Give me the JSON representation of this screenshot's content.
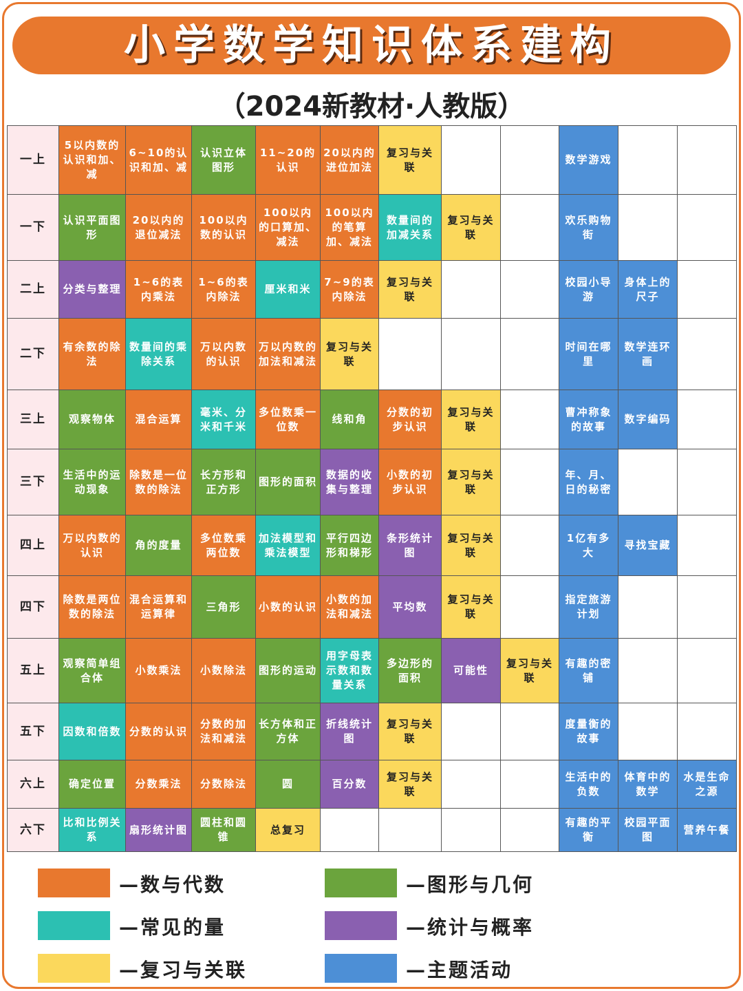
{
  "header": {
    "title": "小学数学知识体系建构",
    "subtitle": "（2024新教材·人教版）"
  },
  "table": {
    "rows": [
      {
        "label": "一上",
        "cells": [
          {
            "text": "5以内数的认识和加、减",
            "color": "#e8782e"
          },
          {
            "text": "6~10的认识和加、减",
            "color": "#e8782e"
          },
          {
            "text": "认识立体图形",
            "color": "#6ba43d"
          },
          {
            "text": "11~20的认识",
            "color": "#e8782e"
          },
          {
            "text": "20以内的进位加法",
            "color": "#e8782e"
          },
          {
            "text": "复习与关联",
            "color": "#fbd85c"
          },
          null,
          null,
          {
            "text": "数学游戏",
            "color": "#4d8fd6"
          },
          null,
          null
        ]
      },
      {
        "label": "一下",
        "cells": [
          {
            "text": "认识平面图形",
            "color": "#6ba43d"
          },
          {
            "text": "20以内的退位减法",
            "color": "#e8782e"
          },
          {
            "text": "100以内数的认识",
            "color": "#e8782e"
          },
          {
            "text": "100以内的口算加、减法",
            "color": "#e8782e"
          },
          {
            "text": "100以内的笔算加、减法",
            "color": "#e8782e"
          },
          {
            "text": "数量间的加减关系",
            "color": "#2cc0b2"
          },
          {
            "text": "复习与关联",
            "color": "#fbd85c"
          },
          null,
          {
            "text": "欢乐购物街",
            "color": "#4d8fd6"
          },
          null,
          null
        ]
      },
      {
        "label": "二上",
        "cells": [
          {
            "text": "分类与整理",
            "color": "#8a60b0"
          },
          {
            "text": "1~6的表内乘法",
            "color": "#e8782e"
          },
          {
            "text": "1~6的表内除法",
            "color": "#e8782e"
          },
          {
            "text": "厘米和米",
            "color": "#2cc0b2"
          },
          {
            "text": "7~9的表内除法",
            "color": "#e8782e"
          },
          {
            "text": "复习与关联",
            "color": "#fbd85c"
          },
          null,
          null,
          {
            "text": "校园小导游",
            "color": "#4d8fd6"
          },
          {
            "text": "身体上的尺子",
            "color": "#4d8fd6"
          },
          null
        ]
      },
      {
        "label": "二下",
        "cells": [
          {
            "text": "有余数的除法",
            "color": "#e8782e"
          },
          {
            "text": "数量间的乘除关系",
            "color": "#2cc0b2"
          },
          {
            "text": "万以内数的认识",
            "color": "#e8782e"
          },
          {
            "text": "万以内数的加法和减法",
            "color": "#e8782e"
          },
          {
            "text": "复习与关联",
            "color": "#fbd85c"
          },
          null,
          null,
          null,
          {
            "text": "时间在哪里",
            "color": "#4d8fd6"
          },
          {
            "text": "数学连环画",
            "color": "#4d8fd6"
          },
          null
        ]
      },
      {
        "label": "三上",
        "cells": [
          {
            "text": "观察物体",
            "color": "#6ba43d"
          },
          {
            "text": "混合运算",
            "color": "#e8782e"
          },
          {
            "text": "毫米、分米和千米",
            "color": "#2cc0b2"
          },
          {
            "text": "多位数乘一位数",
            "color": "#e8782e"
          },
          {
            "text": "线和角",
            "color": "#6ba43d"
          },
          {
            "text": "分数的初步认识",
            "color": "#e8782e"
          },
          {
            "text": "复习与关联",
            "color": "#fbd85c"
          },
          null,
          {
            "text": "曹冲称象的故事",
            "color": "#4d8fd6"
          },
          {
            "text": "数字编码",
            "color": "#4d8fd6"
          },
          null
        ]
      },
      {
        "label": "三下",
        "cells": [
          {
            "text": "生活中的运动现象",
            "color": "#6ba43d"
          },
          {
            "text": "除数是一位数的除法",
            "color": "#e8782e"
          },
          {
            "text": "长方形和正方形",
            "color": "#6ba43d"
          },
          {
            "text": "图形的面积",
            "color": "#6ba43d"
          },
          {
            "text": "数据的收集与整理",
            "color": "#8a60b0"
          },
          {
            "text": "小数的初步认识",
            "color": "#e8782e"
          },
          {
            "text": "复习与关联",
            "color": "#fbd85c"
          },
          null,
          {
            "text": "年、月、日的秘密",
            "color": "#4d8fd6"
          },
          null,
          null
        ]
      },
      {
        "label": "四上",
        "cells": [
          {
            "text": "万以内数的认识",
            "color": "#e8782e"
          },
          {
            "text": "角的度量",
            "color": "#6ba43d"
          },
          {
            "text": "多位数乘两位数",
            "color": "#e8782e"
          },
          {
            "text": "加法模型和乘法模型",
            "color": "#2cc0b2"
          },
          {
            "text": "平行四边形和梯形",
            "color": "#6ba43d"
          },
          {
            "text": "条形统计图",
            "color": "#8a60b0"
          },
          {
            "text": "复习与关联",
            "color": "#fbd85c"
          },
          null,
          {
            "text": "1亿有多大",
            "color": "#4d8fd6"
          },
          {
            "text": "寻找宝藏",
            "color": "#4d8fd6"
          },
          null
        ]
      },
      {
        "label": "四下",
        "cells": [
          {
            "text": "除数是两位数的除法",
            "color": "#e8782e"
          },
          {
            "text": "混合运算和运算律",
            "color": "#e8782e"
          },
          {
            "text": "三角形",
            "color": "#6ba43d"
          },
          {
            "text": "小数的认识",
            "color": "#e8782e"
          },
          {
            "text": "小数的加法和减法",
            "color": "#e8782e"
          },
          {
            "text": "平均数",
            "color": "#8a60b0"
          },
          {
            "text": "复习与关联",
            "color": "#fbd85c"
          },
          null,
          {
            "text": "指定旅游计划",
            "color": "#4d8fd6"
          },
          null,
          null
        ]
      },
      {
        "label": "五上",
        "cells": [
          {
            "text": "观察简单组合体",
            "color": "#6ba43d"
          },
          {
            "text": "小数乘法",
            "color": "#e8782e"
          },
          {
            "text": "小数除法",
            "color": "#e8782e"
          },
          {
            "text": "图形的运动",
            "color": "#6ba43d"
          },
          {
            "text": "用字母表示数和数量关系",
            "color": "#2cc0b2"
          },
          {
            "text": "多边形的面积",
            "color": "#6ba43d"
          },
          {
            "text": "可能性",
            "color": "#8a60b0"
          },
          {
            "text": "复习与关联",
            "color": "#fbd85c"
          },
          {
            "text": "有趣的密铺",
            "color": "#4d8fd6"
          },
          null,
          null
        ]
      },
      {
        "label": "五下",
        "cells": [
          {
            "text": "因数和倍数",
            "color": "#2cc0b2"
          },
          {
            "text": "分数的认识",
            "color": "#e8782e"
          },
          {
            "text": "分数的加法和减法",
            "color": "#e8782e"
          },
          {
            "text": "长方体和正方体",
            "color": "#6ba43d"
          },
          {
            "text": "折线统计图",
            "color": "#8a60b0"
          },
          {
            "text": "复习与关联",
            "color": "#fbd85c"
          },
          null,
          null,
          {
            "text": "度量衡的故事",
            "color": "#4d8fd6"
          },
          null,
          null
        ]
      },
      {
        "label": "六上",
        "cells": [
          {
            "text": "确定位置",
            "color": "#6ba43d"
          },
          {
            "text": "分数乘法",
            "color": "#e8782e"
          },
          {
            "text": "分数除法",
            "color": "#e8782e"
          },
          {
            "text": "圆",
            "color": "#6ba43d"
          },
          {
            "text": "百分数",
            "color": "#8a60b0"
          },
          {
            "text": "复习与关联",
            "color": "#fbd85c"
          },
          null,
          null,
          {
            "text": "生活中的负数",
            "color": "#4d8fd6"
          },
          {
            "text": "体育中的数学",
            "color": "#4d8fd6"
          },
          {
            "text": "水是生命之源",
            "color": "#4d8fd6"
          }
        ]
      },
      {
        "label": "六下",
        "cells": [
          {
            "text": "比和比例关系",
            "color": "#2cc0b2"
          },
          {
            "text": "扇形统计图",
            "color": "#8a60b0"
          },
          {
            "text": "圆柱和圆锥",
            "color": "#6ba43d"
          },
          {
            "text": "总复习",
            "color": "#fbd85c"
          },
          null,
          null,
          null,
          null,
          {
            "text": "有趣的平衡",
            "color": "#4d8fd6"
          },
          {
            "text": "校园平面图",
            "color": "#4d8fd6"
          },
          {
            "text": "营养午餐",
            "color": "#4d8fd6"
          }
        ]
      }
    ]
  },
  "legend": [
    {
      "label": "—数与代数",
      "color": "#e8782e"
    },
    {
      "label": "—图形与几何",
      "color": "#6ba43d"
    },
    {
      "label": "—常见的量",
      "color": "#2cc0b2"
    },
    {
      "label": "—统计与概率",
      "color": "#8a60b0"
    },
    {
      "label": "—复习与关联",
      "color": "#fbd85c"
    },
    {
      "label": "—主题活动",
      "color": "#4d8fd6"
    }
  ]
}
